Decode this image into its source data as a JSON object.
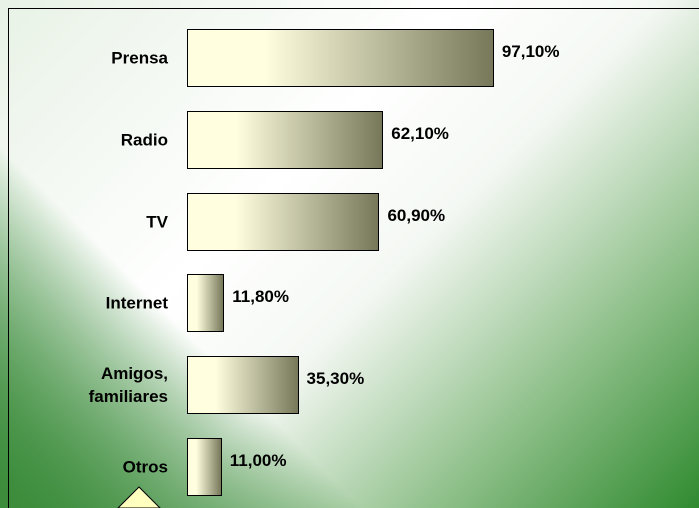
{
  "chart_data": {
    "type": "bar",
    "orientation": "horizontal",
    "categories": [
      "Prensa",
      "Radio",
      "TV",
      "Internet",
      "Amigos, familiares",
      "Otros"
    ],
    "values": [
      97.1,
      62.1,
      60.9,
      11.8,
      35.3,
      11.0
    ],
    "value_labels": [
      "97,10%",
      "62,10%",
      "60,90%",
      "11,80%",
      "35,30%",
      "11,00%"
    ],
    "color": [
      "#ffffe0",
      "#77775a"
    ]
  }
}
